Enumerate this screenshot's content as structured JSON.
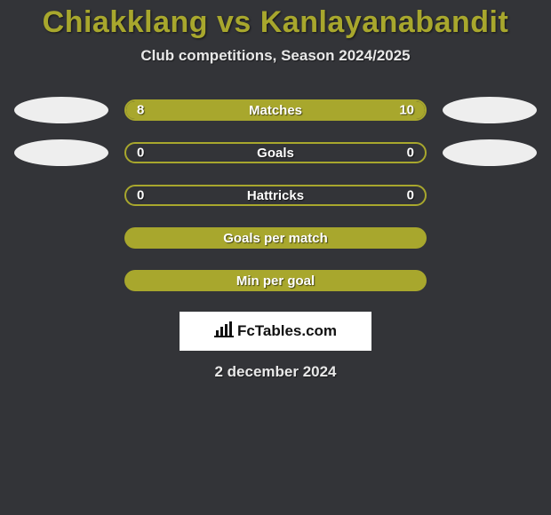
{
  "background_color": "#333438",
  "title": {
    "text": "Chiakklang vs Kanlayanabandit",
    "color": "#a8a72d",
    "fontsize": 34
  },
  "subtitle": {
    "text": "Club competitions, Season 2024/2025",
    "color": "#e8e8e8",
    "fontsize": 17
  },
  "accent_color": "#a8a72d",
  "accent_border_color": "#a8a72d",
  "value_text_color": "#ffffff",
  "label_text_color": "#ffffff",
  "ellipse_color": "#eeeeee",
  "bars": [
    {
      "id": "matches",
      "label": "Matches",
      "left_value": "8",
      "right_value": "10",
      "left_fill_pct": 42,
      "right_fill_pct": 58,
      "side_ellipses": true
    },
    {
      "id": "goals",
      "label": "Goals",
      "left_value": "0",
      "right_value": "0",
      "left_fill_pct": 0,
      "right_fill_pct": 0,
      "side_ellipses": true
    },
    {
      "id": "hattricks",
      "label": "Hattricks",
      "left_value": "0",
      "right_value": "0",
      "left_fill_pct": 0,
      "right_fill_pct": 0,
      "side_ellipses": false
    },
    {
      "id": "goals-per-match",
      "label": "Goals per match",
      "left_value": "",
      "right_value": "",
      "left_fill_pct": 0,
      "right_fill_pct": 0,
      "side_ellipses": false
    },
    {
      "id": "min-per-goal",
      "label": "Min per goal",
      "left_value": "",
      "right_value": "",
      "left_fill_pct": 0,
      "right_fill_pct": 0,
      "side_ellipses": false
    }
  ],
  "logo": {
    "text": "FcTables.com",
    "background": "#ffffff",
    "text_color": "#111111"
  },
  "date": {
    "text": "2 december 2024",
    "color": "#e8e8e8",
    "fontsize": 17
  }
}
